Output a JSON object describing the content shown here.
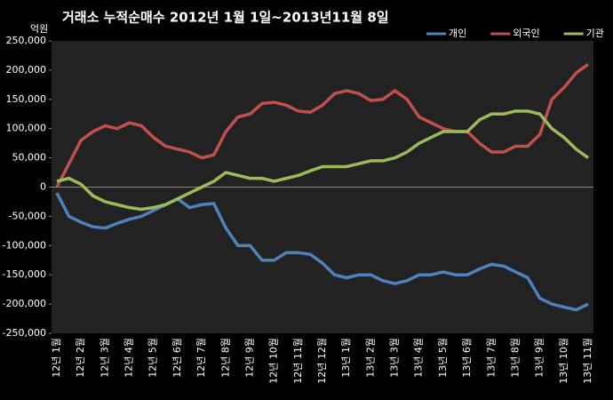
{
  "chart_data": {
    "type": "line",
    "title": "거래소  누적순매수 2012년 1월 1일~2013년11월 8일",
    "y_label": "억원",
    "categories": [
      "12년 1월",
      null,
      "12년 2월",
      null,
      "12년 3월",
      null,
      "12년 4월",
      null,
      "12년 5월",
      null,
      "12년 6월",
      null,
      "12년 7월",
      null,
      "12년 8월",
      null,
      "12년 9월",
      null,
      "12년 10월",
      null,
      "12년 11월",
      null,
      "12년 12월",
      null,
      "13년 1월",
      null,
      "13년 2월",
      null,
      "13년 3월",
      null,
      "13년 4월",
      null,
      "13년 5월",
      null,
      "13년 6월",
      null,
      "13년 7월",
      null,
      "13년 8월",
      null,
      "13년 9월",
      null,
      "13년 10월",
      null,
      "13년 11월"
    ],
    "series": [
      {
        "name": "개인",
        "color": "#4f81bd",
        "values": [
          -10000,
          -50000,
          -60000,
          -68000,
          -70000,
          -62000,
          -55000,
          -50000,
          -40000,
          -30000,
          -20000,
          -35000,
          -30000,
          -28000,
          -70000,
          -100000,
          -100000,
          -125000,
          -125000,
          -112000,
          -112000,
          -115000,
          -130000,
          -150000,
          -155000,
          -150000,
          -150000,
          -160000,
          -165000,
          -160000,
          -150000,
          -150000,
          -145000,
          -150000,
          -150000,
          -140000,
          -132000,
          -135000,
          -145000,
          -155000,
          -190000,
          -200000,
          -205000,
          -210000,
          -200000
        ]
      },
      {
        "name": "외국인",
        "color": "#c0504d",
        "values": [
          0,
          40000,
          80000,
          95000,
          105000,
          100000,
          110000,
          105000,
          85000,
          70000,
          65000,
          60000,
          50000,
          55000,
          95000,
          120000,
          125000,
          143000,
          145000,
          140000,
          130000,
          128000,
          140000,
          160000,
          165000,
          160000,
          148000,
          150000,
          165000,
          150000,
          120000,
          110000,
          100000,
          95000,
          95000,
          75000,
          60000,
          60000,
          70000,
          70000,
          90000,
          150000,
          170000,
          195000,
          210000
        ]
      },
      {
        "name": "기관",
        "color": "#9bbb59",
        "values": [
          10000,
          15000,
          5000,
          -15000,
          -25000,
          -30000,
          -35000,
          -38000,
          -35000,
          -30000,
          -20000,
          -10000,
          0,
          10000,
          25000,
          20000,
          15000,
          15000,
          10000,
          15000,
          20000,
          28000,
          35000,
          35000,
          35000,
          40000,
          45000,
          45000,
          50000,
          60000,
          75000,
          85000,
          95000,
          95000,
          95000,
          115000,
          125000,
          125000,
          130000,
          130000,
          125000,
          100000,
          85000,
          65000,
          50000
        ]
      }
    ],
    "ylim": [
      -250000,
      250000
    ],
    "yticks": [
      {
        "value": -250000,
        "label": "-250,000"
      },
      {
        "value": -200000,
        "label": "-200,000"
      },
      {
        "value": -150000,
        "label": "-150,000"
      },
      {
        "value": -100000,
        "label": "-100,000"
      },
      {
        "value": -50000,
        "label": "-50,000"
      },
      0,
      {
        "value": 50000,
        "label": "50,000"
      },
      {
        "value": 100000,
        "label": "100,000"
      },
      {
        "value": 150000,
        "label": "150,000"
      },
      {
        "value": 200000,
        "label": "200,000"
      },
      {
        "value": 250000,
        "label": "250,000"
      }
    ],
    "legend": "top-right"
  }
}
